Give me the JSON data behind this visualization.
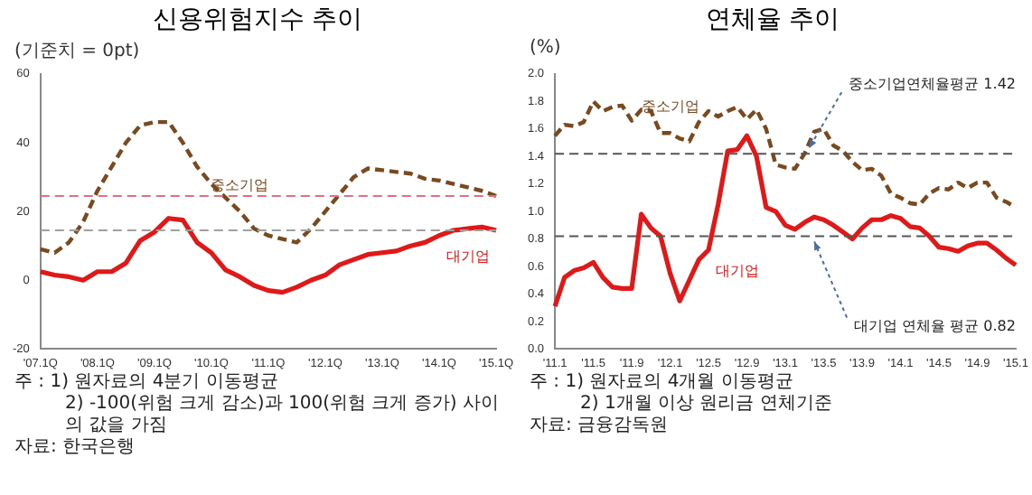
{
  "chart_data": [
    {
      "type": "line",
      "title": "신용위험지수 추이",
      "ylabel": "(기준치 = 0pt)",
      "categories": [
        "'07.1Q",
        null,
        null,
        null,
        "'08.1Q",
        null,
        null,
        null,
        "'09.1Q",
        null,
        null,
        null,
        "'10.1Q",
        null,
        null,
        null,
        "'11.1Q",
        null,
        null,
        null,
        "'12.1Q",
        null,
        null,
        null,
        "'13.1Q",
        null,
        null,
        null,
        "'14.1Q",
        null,
        null,
        null,
        "'15.1Q"
      ],
      "series": [
        {
          "name": "중소기업",
          "color": "#7a4a1e",
          "line_style": "dashed",
          "values": [
            9,
            8,
            11,
            17,
            26,
            33,
            40,
            45,
            46,
            46,
            40,
            33,
            28,
            24,
            20,
            15,
            13,
            12,
            11,
            15,
            20,
            25,
            30,
            32.5,
            32,
            31.5,
            31,
            29.5,
            29,
            28,
            27,
            26,
            24.5
          ]
        },
        {
          "name": "대기업",
          "color": "#e01818",
          "line_style": "solid",
          "values": [
            2.5,
            1.5,
            1,
            0,
            2.5,
            2.5,
            5,
            11.5,
            14,
            18,
            17.5,
            11,
            8,
            3,
            1,
            -1.5,
            -3,
            -3.5,
            -2,
            0,
            1.5,
            4.5,
            6,
            7.5,
            8,
            8.5,
            10,
            11,
            13,
            14.5,
            15,
            15.5,
            14.5
          ]
        }
      ],
      "ylim": [
        -20,
        60
      ],
      "yticks": [
        -20,
        0,
        20,
        40,
        60
      ],
      "ref_lines": [
        {
          "axis": "y",
          "value": 24.5,
          "color": "#e07080",
          "line_style": "dashed"
        },
        {
          "axis": "y",
          "value": 14.5,
          "color": "#a0a0a0",
          "line_style": "dashed"
        }
      ],
      "grid": false,
      "legend": false,
      "marker": "none",
      "annotations": [
        "주 : 1) 원자료의 4분기 이동평균",
        "2) -100(위험 크게 감소)과 100(위험 크게 증가) 사이의 값을 가짐",
        "자료: 한국은행"
      ]
    },
    {
      "type": "line",
      "title": "연체율 추이",
      "ylabel": "(%)",
      "categories": [
        "'11.1",
        null,
        null,
        null,
        "'11.5",
        null,
        null,
        null,
        "'11.9",
        null,
        null,
        null,
        "'12.1",
        null,
        null,
        null,
        "'12.5",
        null,
        null,
        null,
        "'12.9",
        null,
        null,
        null,
        "'13.1",
        null,
        null,
        null,
        "'13.5",
        null,
        null,
        null,
        "'13.9",
        null,
        null,
        null,
        "'14.1",
        null,
        null,
        null,
        "'14.5",
        null,
        null,
        null,
        "'14.9",
        null,
        null,
        null,
        "'15.1"
      ],
      "series": [
        {
          "name": "중소기업",
          "color": "#7a4a1e",
          "line_style": "dashed",
          "values": [
            1.55,
            1.63,
            1.62,
            1.65,
            1.8,
            1.73,
            1.76,
            1.77,
            1.66,
            1.74,
            1.73,
            1.57,
            1.57,
            1.53,
            1.51,
            1.65,
            1.73,
            1.69,
            1.73,
            1.76,
            1.67,
            1.74,
            1.6,
            1.34,
            1.32,
            1.31,
            1.42,
            1.58,
            1.6,
            1.48,
            1.44,
            1.36,
            1.3,
            1.31,
            1.26,
            1.13,
            1.1,
            1.06,
            1.05,
            1.13,
            1.17,
            1.16,
            1.21,
            1.17,
            1.21,
            1.21,
            1.1,
            1.07,
            1.03
          ]
        },
        {
          "name": "대기업",
          "color": "#e01818",
          "line_style": "solid",
          "values": [
            0.31,
            0.52,
            0.57,
            0.59,
            0.63,
            0.52,
            0.45,
            0.44,
            0.44,
            0.98,
            0.88,
            0.82,
            0.55,
            0.35,
            0.5,
            0.65,
            0.72,
            1.05,
            1.44,
            1.45,
            1.55,
            1.4,
            1.03,
            1,
            0.9,
            0.87,
            0.92,
            0.96,
            0.94,
            0.9,
            0.85,
            0.8,
            0.88,
            0.94,
            0.94,
            0.97,
            0.95,
            0.89,
            0.88,
            0.82,
            0.74,
            0.73,
            0.71,
            0.75,
            0.77,
            0.77,
            0.72,
            0.66,
            0.61
          ]
        }
      ],
      "ylim": [
        0,
        2
      ],
      "yticks": [
        {
          "value": 0,
          "label": "0.0"
        },
        {
          "value": 0.2,
          "label": "0.2"
        },
        {
          "value": 0.4,
          "label": "0.4"
        },
        {
          "value": 0.6,
          "label": "0.6"
        },
        {
          "value": 0.8,
          "label": "0.8"
        },
        {
          "value": 1,
          "label": "1.0"
        },
        {
          "value": 1.2,
          "label": "1.2"
        },
        {
          "value": 1.4,
          "label": "1.4"
        },
        {
          "value": 1.6,
          "label": "1.6"
        },
        {
          "value": 1.8,
          "label": "1.8"
        },
        {
          "value": 2,
          "label": "2.0"
        }
      ],
      "ref_lines": [
        {
          "axis": "y",
          "value": 1.42,
          "label": "중소기업연체율평균 1.42",
          "color": "#555555",
          "line_style": "dashed"
        },
        {
          "axis": "y",
          "value": 0.82,
          "label": "대기업 연체율 평균 0.82",
          "color": "#555555",
          "line_style": "dashed"
        }
      ],
      "grid": false,
      "legend": false,
      "marker": "none",
      "annotations": [
        "주 : 1) 원자료의 4개월 이동평균",
        "2) 1개월 이상 원리금 연체기준",
        "자료: 금융감독원"
      ]
    }
  ]
}
